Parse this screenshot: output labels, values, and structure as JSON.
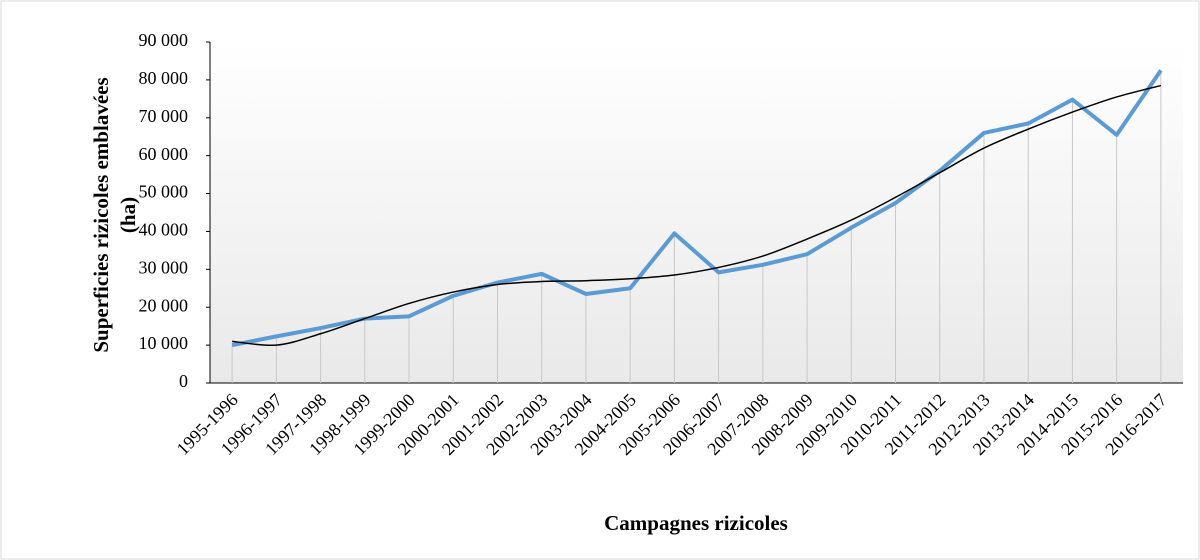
{
  "chart_data": {
    "type": "line",
    "y_label": [
      "Superficies rizicoles  emblavées",
      "(ha)"
    ],
    "x_label": "Campagnes rizicoles",
    "categories": [
      "1995-1996",
      "1996-1997",
      "1997-1998",
      "1998-1999",
      "1999-2000",
      "2000-2001",
      "2001-2002",
      "2002-2003",
      "2003-2004",
      "2004-2005",
      "2005-2006",
      "2006-2007",
      "2007-2008",
      "2008-2009",
      "2009-2010",
      "2010-2011",
      "2011-2012",
      "2012-2013",
      "2013-2014",
      "2014-2015",
      "2015-2016",
      "2016-2017"
    ],
    "series": [
      {
        "color": "#5b9bd5",
        "values": [
          10000,
          12300,
          14500,
          17000,
          17600,
          23000,
          26500,
          28800,
          23500,
          25000,
          39500,
          29200,
          31200,
          34000,
          41000,
          47500,
          56000,
          66000,
          68500,
          74800,
          65500,
          82500
        ]
      },
      {
        "color": "#000000",
        "smooth": true,
        "values": [
          11000,
          10000,
          13000,
          17000,
          21000,
          24000,
          26000,
          26800,
          27000,
          27500,
          28500,
          30500,
          33500,
          38000,
          43000,
          49000,
          55500,
          62000,
          67000,
          71500,
          75500,
          78500
        ]
      }
    ],
    "drop_lines": true,
    "ylim": [
      0,
      90000
    ],
    "yticks": [
      0,
      {
        "value": 10000,
        "label": "10 000"
      },
      {
        "value": 20000,
        "label": "20 000"
      },
      {
        "value": 30000,
        "label": "30 000"
      },
      {
        "value": 40000,
        "label": "40 000"
      },
      {
        "value": 50000,
        "label": "50 000"
      },
      {
        "value": 60000,
        "label": "60 000"
      },
      {
        "value": 70000,
        "label": "70 000"
      },
      {
        "value": 80000,
        "label": "80 000"
      },
      {
        "value": 90000,
        "label": "90 000"
      }
    ]
  }
}
